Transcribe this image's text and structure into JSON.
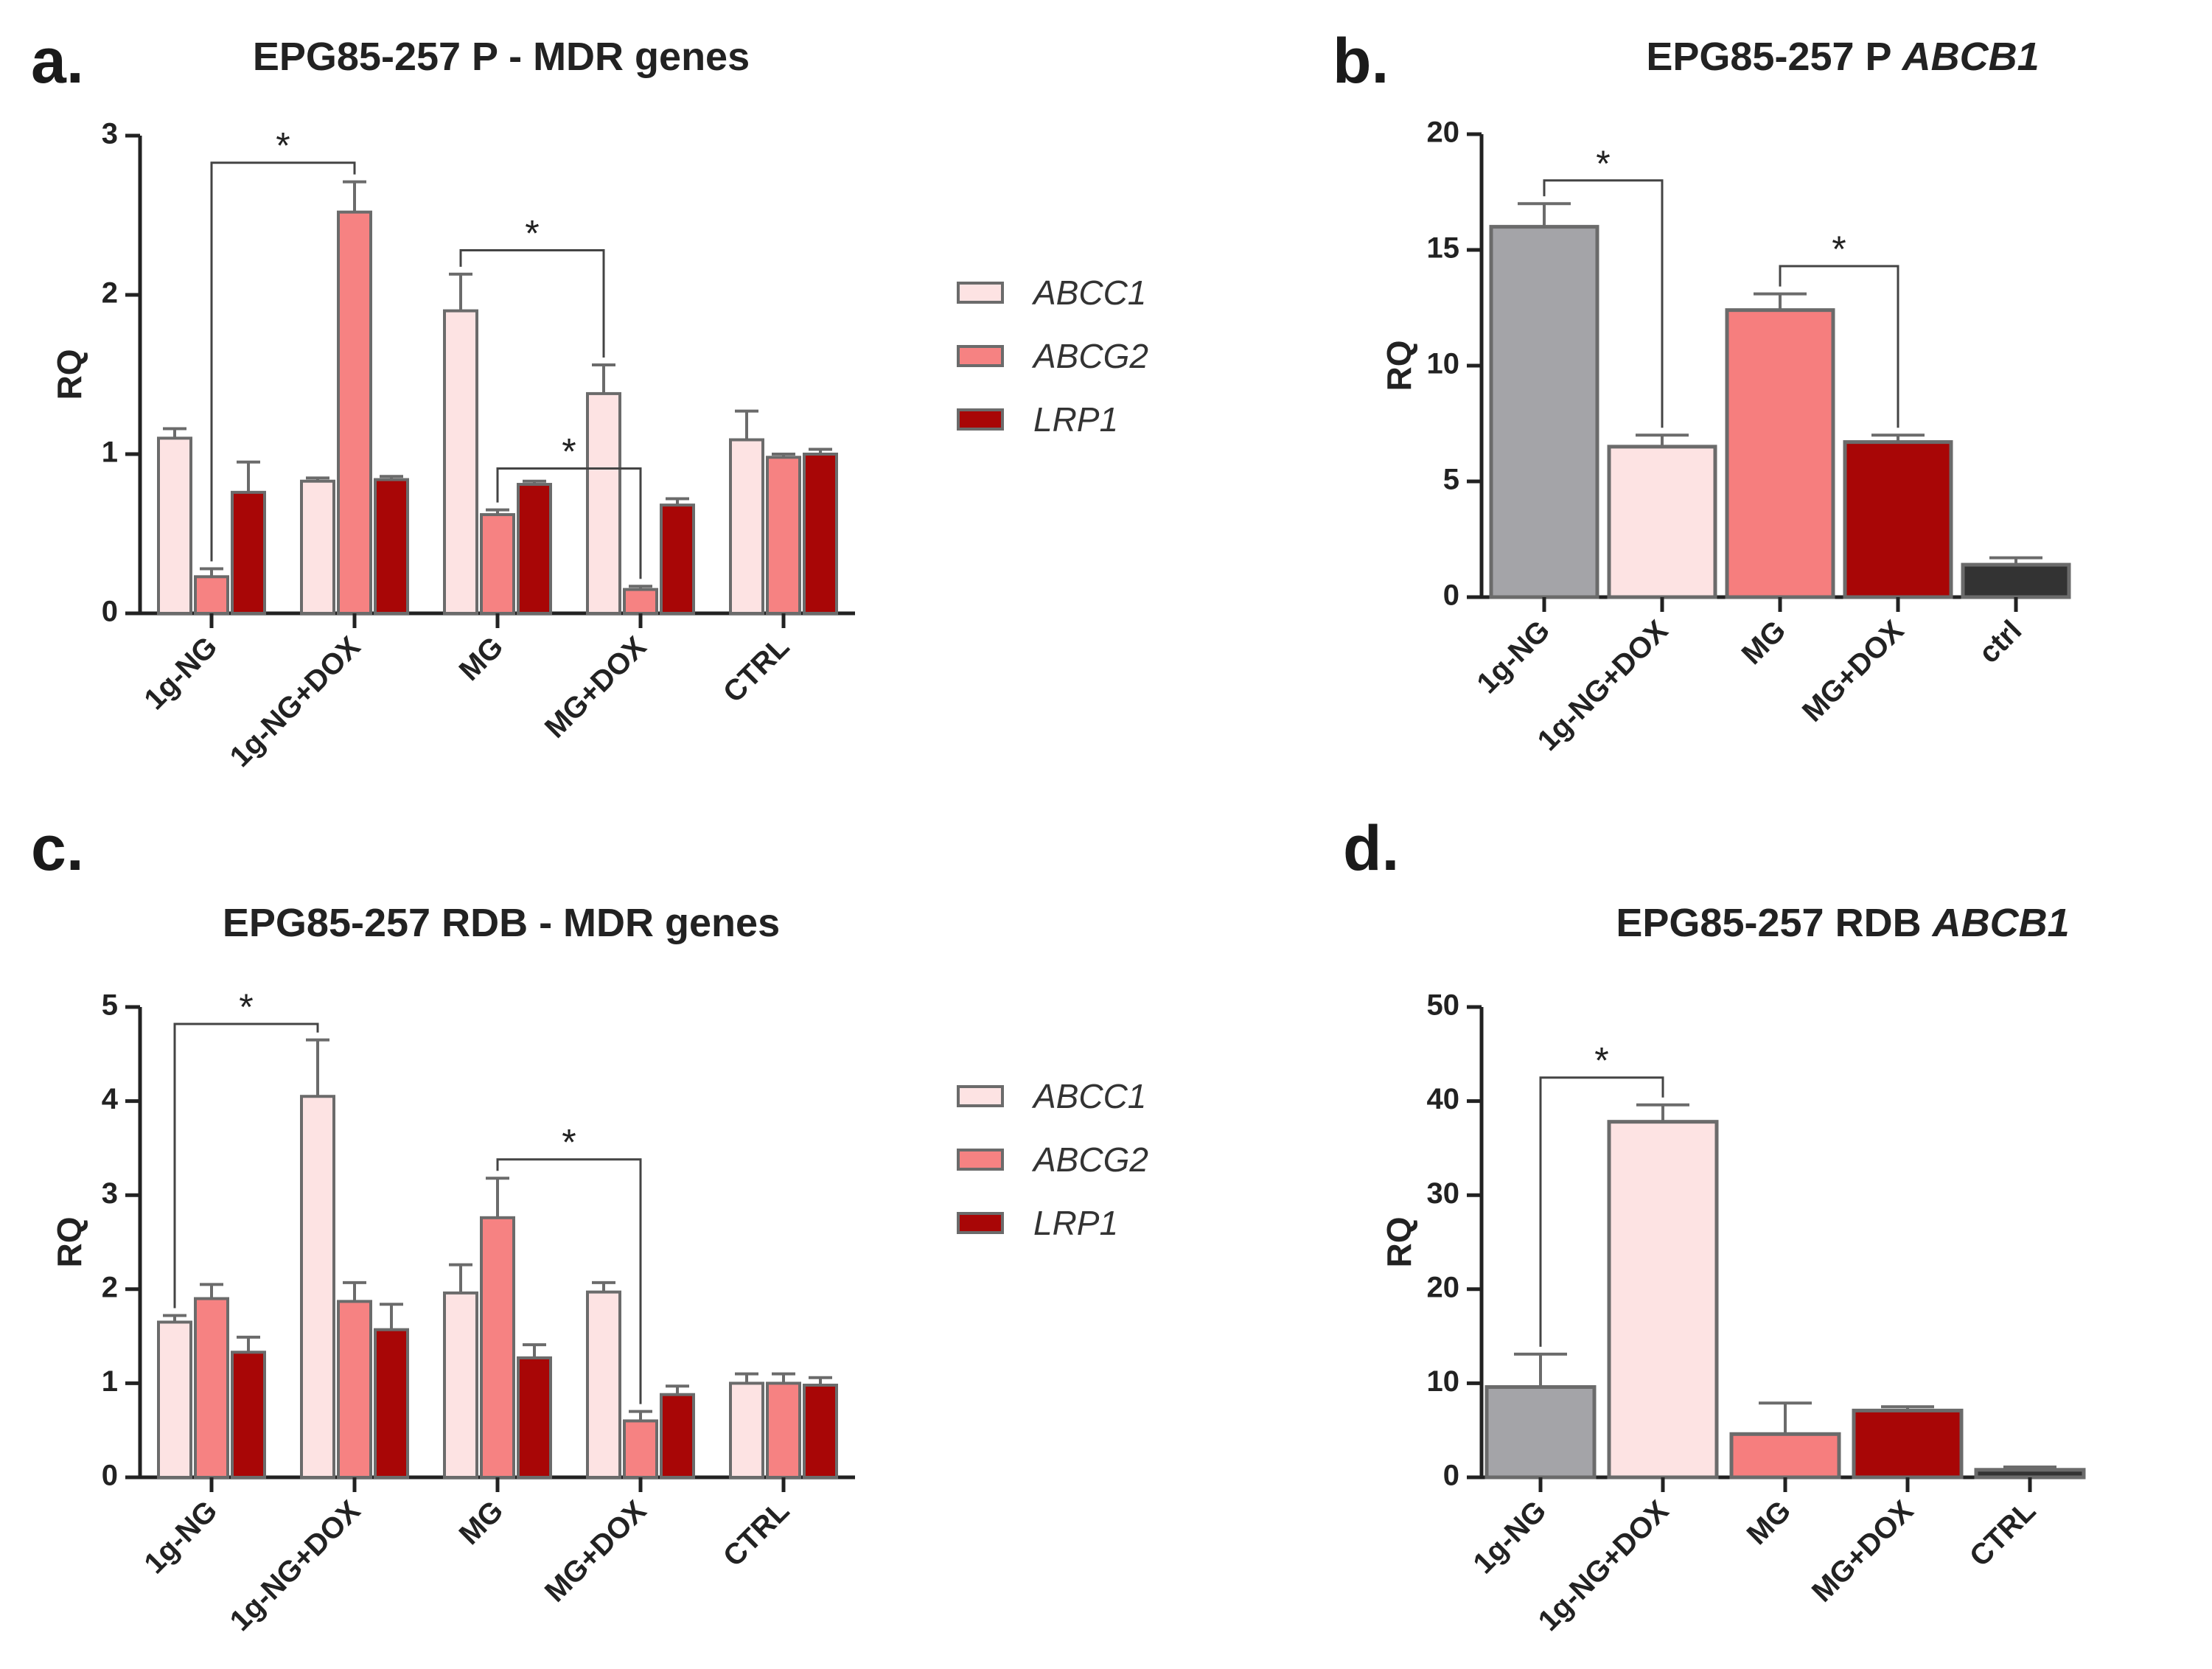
{
  "figure": {
    "panel_letters": [
      "a.",
      "b.",
      "c.",
      "d."
    ],
    "legend": [
      {
        "label": "ABCC1",
        "color": "#fde3e3"
      },
      {
        "label": "ABCG2",
        "color": "#f68282"
      },
      {
        "label": "LRP1",
        "color": "#a80606"
      }
    ]
  },
  "chart_data": [
    {
      "id": "a",
      "type": "bar",
      "title": "EPG85-257 P - MDR genes",
      "title_plain": "EPG85-257 P - MDR genes",
      "title_italic": "",
      "ylabel": "RQ",
      "xlabel": "",
      "ylim": [
        0,
        3
      ],
      "yticks": [
        0,
        1,
        2,
        3
      ],
      "categories": [
        "1g-NG",
        "1g-NG+DOX",
        "MG",
        "MG+DOX",
        "CTRL"
      ],
      "series": [
        {
          "name": "ABCC1",
          "color": "#fde3e3",
          "values": [
            1.1,
            0.83,
            1.9,
            1.38,
            1.09
          ],
          "errors": [
            0.06,
            0.02,
            0.23,
            0.18,
            0.18
          ]
        },
        {
          "name": "ABCG2",
          "color": "#f68282",
          "values": [
            0.23,
            2.52,
            0.62,
            0.15,
            0.98
          ],
          "errors": [
            0.05,
            0.19,
            0.03,
            0.02,
            0.02
          ]
        },
        {
          "name": "LRP1",
          "color": "#a80606",
          "values": [
            0.76,
            0.84,
            0.81,
            0.68,
            1.0
          ],
          "errors": [
            0.19,
            0.02,
            0.02,
            0.04,
            0.03
          ]
        }
      ],
      "significance": [
        {
          "from": [
            0,
            1
          ],
          "to": [
            1,
            1
          ],
          "label": "*",
          "y": 2.83
        },
        {
          "from": [
            2,
            0
          ],
          "to": [
            3,
            0
          ],
          "label": "*",
          "y": 2.28
        },
        {
          "from": [
            2,
            1
          ],
          "to": [
            3,
            1
          ],
          "label": "*",
          "y": 0.91
        }
      ]
    },
    {
      "id": "b",
      "type": "bar",
      "title": "EPG85-257 P ABCB1",
      "title_plain": "EPG85-257 P ",
      "title_italic": "ABCB1",
      "ylabel": "RQ",
      "xlabel": "",
      "ylim": [
        0,
        20
      ],
      "yticks": [
        0,
        5,
        10,
        15,
        20
      ],
      "categories": [
        "1g-NG",
        "1g-NG+DOX",
        "MG",
        "MG+DOX",
        "ctrl"
      ],
      "values": [
        16.0,
        6.5,
        12.4,
        6.7,
        1.4
      ],
      "errors": [
        1.0,
        0.5,
        0.7,
        0.3,
        0.3
      ],
      "colors": [
        "#a4a4a8",
        "#fde3e3",
        "#f67e7e",
        "#a80606",
        "#333333"
      ],
      "significance": [
        {
          "from": 0,
          "to": 1,
          "label": "*",
          "y": 18.0
        },
        {
          "from": 2,
          "to": 3,
          "label": "*",
          "y": 14.3
        }
      ]
    },
    {
      "id": "c",
      "type": "bar",
      "title": "EPG85-257 RDB - MDR genes",
      "title_plain": "EPG85-257 RDB - MDR genes",
      "title_italic": "",
      "ylabel": "RQ",
      "xlabel": "",
      "ylim": [
        0,
        5
      ],
      "yticks": [
        0,
        1,
        2,
        3,
        4,
        5
      ],
      "categories": [
        "1g-NG",
        "1g-NG+DOX",
        "MG",
        "MG+DOX",
        "CTRL"
      ],
      "series": [
        {
          "name": "ABCC1",
          "color": "#fde3e3",
          "values": [
            1.65,
            4.05,
            1.96,
            1.97,
            1.0
          ],
          "errors": [
            0.07,
            0.6,
            0.3,
            0.1,
            0.1
          ]
        },
        {
          "name": "ABCG2",
          "color": "#f68282",
          "values": [
            1.9,
            1.87,
            2.76,
            0.6,
            1.0
          ],
          "errors": [
            0.15,
            0.2,
            0.42,
            0.1,
            0.1
          ]
        },
        {
          "name": "LRP1",
          "color": "#a80606",
          "values": [
            1.33,
            1.57,
            1.27,
            0.88,
            0.98
          ],
          "errors": [
            0.16,
            0.27,
            0.14,
            0.09,
            0.08
          ]
        }
      ],
      "significance": [
        {
          "from": [
            0,
            0
          ],
          "to": [
            1,
            0
          ],
          "label": "*",
          "y": 4.82
        },
        {
          "from": [
            2,
            1
          ],
          "to": [
            3,
            1
          ],
          "label": "*",
          "y": 3.38
        }
      ]
    },
    {
      "id": "d",
      "type": "bar",
      "title": "EPG85-257 RDB ABCB1",
      "title_plain": "EPG85-257 RDB ",
      "title_italic": "ABCB1",
      "ylabel": "RQ",
      "xlabel": "",
      "ylim": [
        0,
        50
      ],
      "yticks": [
        0,
        10,
        20,
        30,
        40,
        50
      ],
      "categories": [
        "1g-NG",
        "1g-NG+DOX",
        "MG",
        "MG+DOX",
        "CTRL"
      ],
      "values": [
        9.6,
        37.8,
        4.6,
        7.1,
        0.8
      ],
      "errors": [
        3.5,
        1.8,
        3.3,
        0.4,
        0.3
      ],
      "colors": [
        "#a4a4a8",
        "#fde3e3",
        "#f67e7e",
        "#a80606",
        "#333333"
      ],
      "significance": [
        {
          "from": 0,
          "to": 1,
          "label": "*",
          "y": 42.5
        }
      ]
    }
  ]
}
